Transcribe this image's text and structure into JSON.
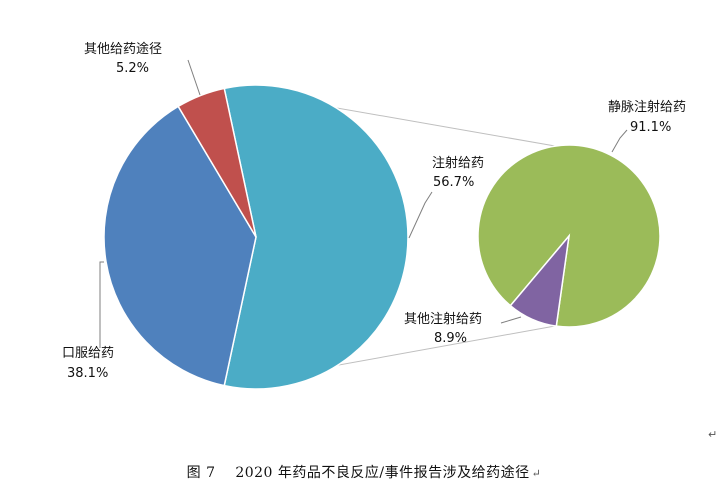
{
  "chart_data": {
    "type": "pie",
    "subtype": "pie-of-pie",
    "series": [
      {
        "slices": [
          {
            "label": "注射给药",
            "value": 56.7,
            "display": "56.7%",
            "color": "#4bacc6"
          },
          {
            "label": "口服给药",
            "value": 38.1,
            "display": "38.1%",
            "color": "#4f81bd"
          },
          {
            "label": "其他给药途径",
            "value": 5.2,
            "display": "5.2%",
            "color": "#c0504d"
          }
        ]
      },
      {
        "breakdown_of": "注射给药",
        "slices": [
          {
            "label": "静脉注射给药",
            "value": 91.1,
            "display": "91.1%",
            "color": "#9bbb59"
          },
          {
            "label": "其他注射给药",
            "value": 8.9,
            "display": "8.9%",
            "color": "#8064a2"
          }
        ]
      }
    ],
    "connector_color": "#bfbfbf",
    "legend": "none",
    "title": ""
  },
  "caption": {
    "figure_no": "图 7",
    "text": "2020 年药品不良反应/事件报告涉及给药途径",
    "mark": "↵"
  },
  "page_mark": "↵"
}
